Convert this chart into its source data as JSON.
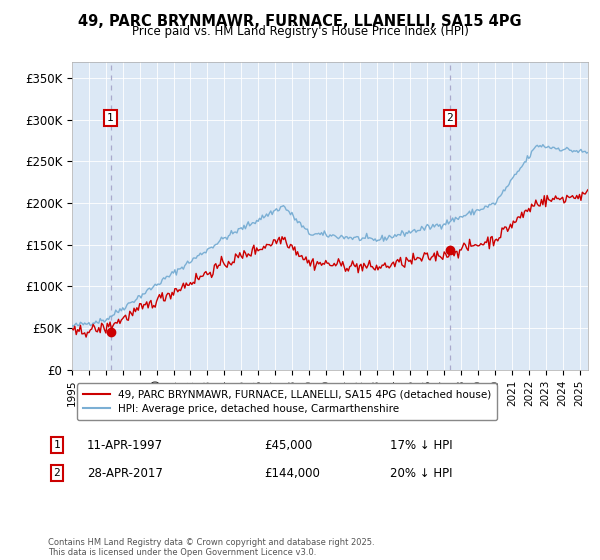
{
  "title": "49, PARC BRYNMAWR, FURNACE, LLANELLI, SA15 4PG",
  "subtitle": "Price paid vs. HM Land Registry's House Price Index (HPI)",
  "ylim": [
    0,
    370000
  ],
  "yticks": [
    0,
    50000,
    100000,
    150000,
    200000,
    250000,
    300000,
    350000
  ],
  "ytick_labels": [
    "£0",
    "£50K",
    "£100K",
    "£150K",
    "£200K",
    "£250K",
    "£300K",
    "£350K"
  ],
  "sale1_year": 1997.28,
  "sale1_price": 45000,
  "sale1_label": "11-APR-1997",
  "sale1_pct": "17% ↓ HPI",
  "sale2_year": 2017.33,
  "sale2_price": 144000,
  "sale2_label": "28-APR-2017",
  "sale2_pct": "20% ↓ HPI",
  "line_color_red": "#cc0000",
  "line_color_blue": "#7bafd4",
  "marker_color_red": "#cc0000",
  "dashed_color": "#aaaacc",
  "bg_color": "#dce8f5",
  "legend_label_red": "49, PARC BRYNMAWR, FURNACE, LLANELLI, SA15 4PG (detached house)",
  "legend_label_blue": "HPI: Average price, detached house, Carmarthenshire",
  "footer": "Contains HM Land Registry data © Crown copyright and database right 2025.\nThis data is licensed under the Open Government Licence v3.0.",
  "xmin": 1995,
  "xmax": 2025.5
}
